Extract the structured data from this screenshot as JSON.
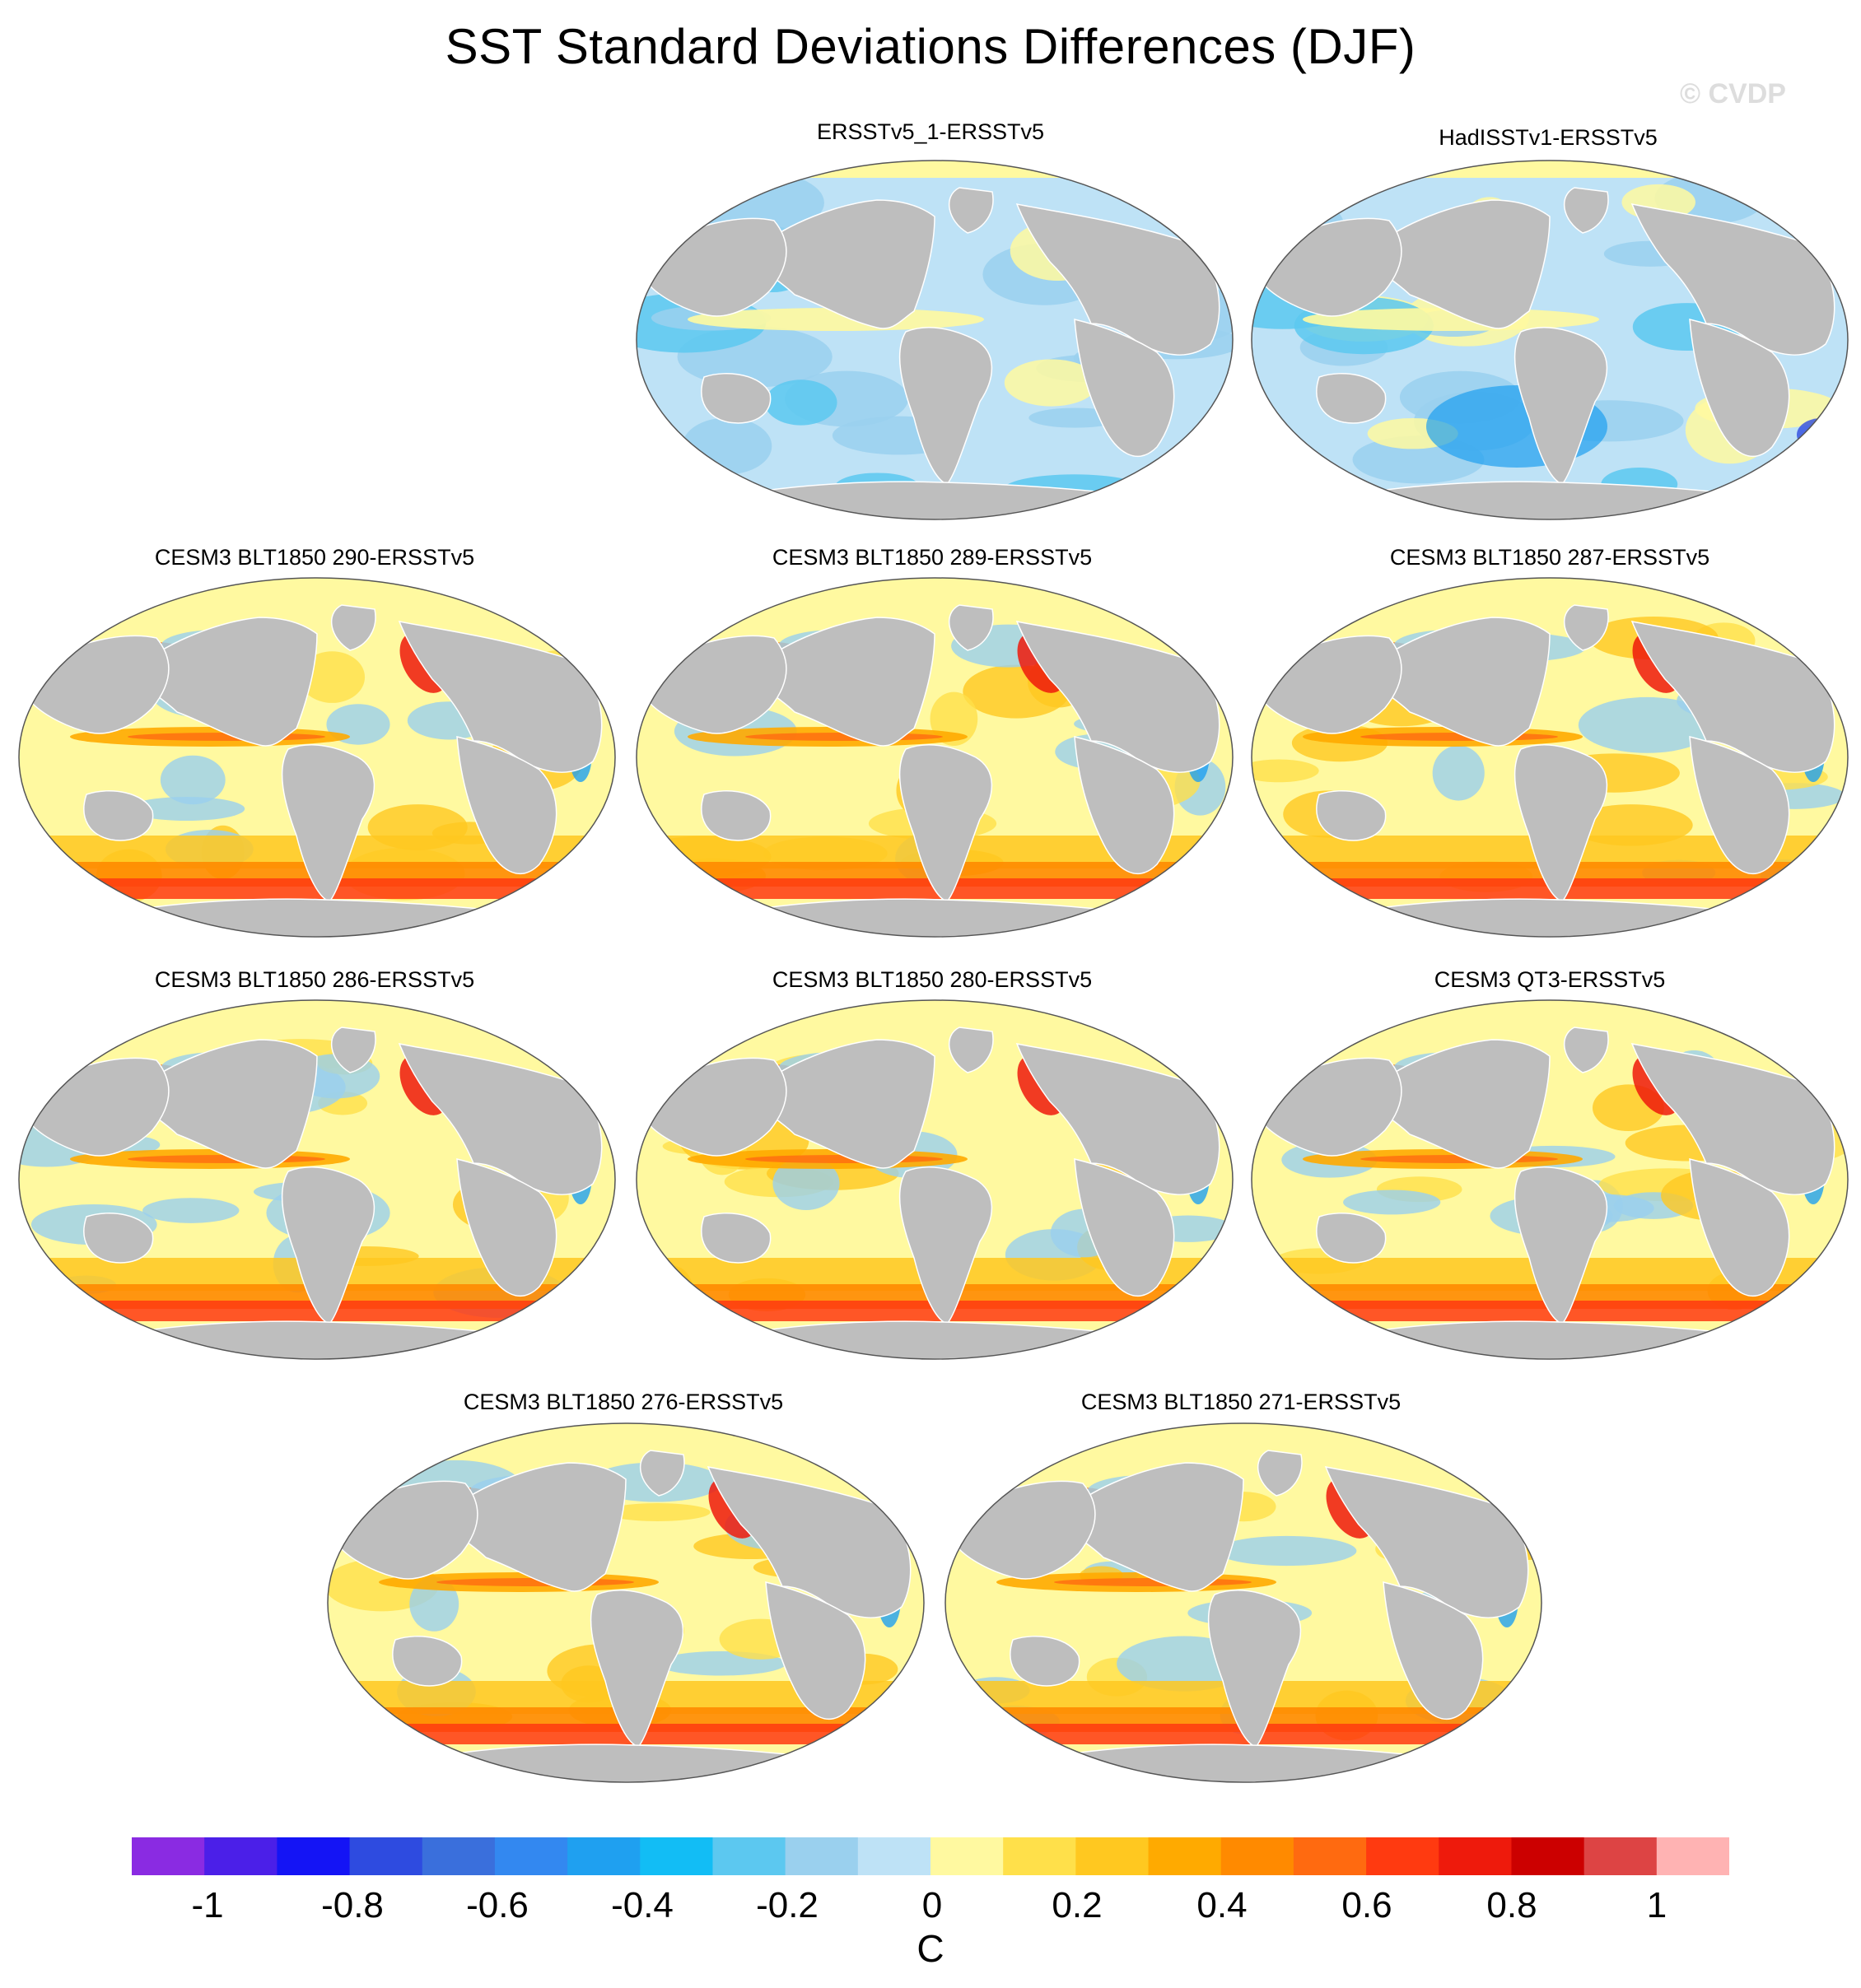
{
  "title": "SST Standard Deviations Differences (DJF)",
  "watermark": "© CVDP",
  "panels": [
    {
      "id": "p1",
      "title": "ERSSTv5_1-ERSSTv5"
    },
    {
      "id": "p2",
      "title": "HadISSTv1-ERSSTv5"
    },
    {
      "id": "p3",
      "title": "CESM3 BLT1850 290-ERSSTv5"
    },
    {
      "id": "p4",
      "title": "CESM3 BLT1850 289-ERSSTv5"
    },
    {
      "id": "p5",
      "title": "CESM3 BLT1850 287-ERSSTv5"
    },
    {
      "id": "p6",
      "title": "CESM3 BLT1850 286-ERSSTv5"
    },
    {
      "id": "p7",
      "title": "CESM3 BLT1850 280-ERSSTv5"
    },
    {
      "id": "p8",
      "title": "CESM3 QT3-ERSSTv5"
    },
    {
      "id": "p9",
      "title": "CESM3 BLT1850 276-ERSSTv5"
    },
    {
      "id": "p10",
      "title": "CESM3 BLT1850 271-ERSSTv5"
    }
  ],
  "colorbar": {
    "colors": [
      "#8A2BE2",
      "#4B1FE8",
      "#1414F5",
      "#2E4BE0",
      "#3A6FDC",
      "#3388F0",
      "#1FA0F0",
      "#12BDF5",
      "#5CC8F0",
      "#9AD0EE",
      "#BEE2F6",
      "#FFF9A0",
      "#FFE04A",
      "#FFC820",
      "#FFAA00",
      "#FF8A00",
      "#FF6A10",
      "#FF3A10",
      "#EE1A0C",
      "#CC0000",
      "#DD4444",
      "#FFB3B3"
    ],
    "labels": [
      "-1",
      "-0.8",
      "-0.6",
      "-0.4",
      "-0.2",
      "0",
      "0.2",
      "0.4",
      "0.6",
      "0.8",
      "1"
    ],
    "units": "C"
  },
  "style": {
    "land": "#BEBEBE",
    "ocean_pos": "#FFE76A",
    "ocean_neg": "#BFE0F4"
  }
}
